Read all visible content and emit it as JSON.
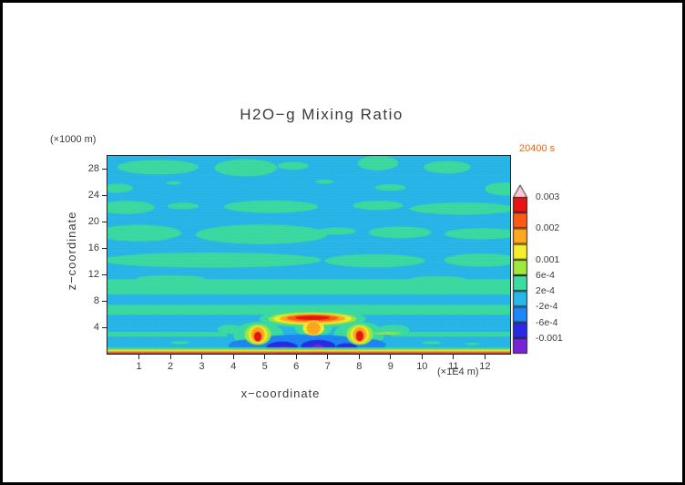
{
  "figure": {
    "title": "H2O−g Mixing Ratio",
    "time_label": "20400 s",
    "x_axis_label": "x−coordinate",
    "x_axis_units": "(×1E4 m)",
    "y_axis_label": "z−coordinate",
    "y_axis_units": "(×1000 m)"
  },
  "chart_data": {
    "type": "filled_contour",
    "title": "H2O−g Mixing Ratio",
    "time": "20400 s",
    "xlabel": "x−coordinate",
    "x_units": "×1E4 m",
    "ylabel": "z−coordinate",
    "y_units": "×1000 m",
    "xlim": [
      0,
      12.8
    ],
    "ylim": [
      0,
      30
    ],
    "x_ticks": [
      1,
      2,
      3,
      4,
      5,
      6,
      7,
      8,
      9,
      10,
      11,
      12
    ],
    "y_ticks": [
      4,
      8,
      12,
      16,
      20,
      24,
      28
    ],
    "levels": [
      -0.001,
      -0.0006,
      -0.0002,
      0.0002,
      0.0006,
      0.001,
      0.0015,
      0.002,
      0.0025,
      0.003
    ],
    "palette": {
      "m3": "#7a22d8",
      "m2": "#2a2ae6",
      "m1": "#1e86f5",
      "z0": "#29b6e8",
      "p1": "#3cdba2",
      "p2": "#9fe83c",
      "p3": "#f5ed2e",
      "p4": "#ffa81e",
      "p5": "#ff5a14",
      "p6": "#e81414",
      "p7": "#ffc9d4"
    },
    "colorbar": {
      "segment_colors_bottom_to_top": [
        "m3",
        "m2",
        "m1",
        "z0",
        "p1",
        "p2",
        "p3",
        "p4",
        "p5",
        "p6"
      ],
      "overflow_triangle_color": "p7",
      "labels": [
        {
          "boundary": 1,
          "text": "-0.001"
        },
        {
          "boundary": 2,
          "text": "-6e-4"
        },
        {
          "boundary": 3,
          "text": "-2e-4"
        },
        {
          "boundary": 4,
          "text": "2e-4"
        },
        {
          "boundary": 5,
          "text": "6e-4"
        },
        {
          "boundary": 6,
          "text": "0.001"
        },
        {
          "boundary": 8,
          "text": "0.002"
        },
        {
          "boundary": 10,
          "text": "0.003"
        }
      ]
    },
    "background_level": "z0",
    "shapes": [
      {
        "t": "r",
        "c": "p1",
        "x": 0,
        "x2": 12.8,
        "y": 9.0,
        "y2": 11.3
      },
      {
        "t": "e",
        "c": "p1",
        "x": 2.0,
        "y": 11.4,
        "rx": 1.1,
        "ry": 0.5
      },
      {
        "t": "e",
        "c": "p1",
        "x": 10.5,
        "y": 11.3,
        "rx": 0.9,
        "ry": 0.45
      },
      {
        "t": "r",
        "c": "p1",
        "x": 0,
        "x2": 12.8,
        "y": 5.9,
        "y2": 7.4
      },
      {
        "t": "e",
        "c": "p1",
        "x": 3.3,
        "y": 14.2,
        "rx": 3.5,
        "ry": 1.15
      },
      {
        "t": "e",
        "c": "p1",
        "x": 8.5,
        "y": 14.1,
        "rx": 1.6,
        "ry": 1.0
      },
      {
        "t": "e",
        "c": "p1",
        "x": 11.9,
        "y": 14.2,
        "rx": 1.2,
        "ry": 1.0
      },
      {
        "t": "e",
        "c": "p1",
        "x": 1.0,
        "y": 18.3,
        "rx": 1.35,
        "ry": 1.25
      },
      {
        "t": "e",
        "c": "p1",
        "x": 4.9,
        "y": 18.1,
        "rx": 2.1,
        "ry": 1.5
      },
      {
        "t": "e",
        "c": "p1",
        "x": 7.3,
        "y": 18.6,
        "rx": 0.6,
        "ry": 0.55
      },
      {
        "t": "e",
        "c": "p1",
        "x": 9.3,
        "y": 18.4,
        "rx": 1.0,
        "ry": 0.9
      },
      {
        "t": "e",
        "c": "p1",
        "x": 11.9,
        "y": 18.2,
        "rx": 1.2,
        "ry": 0.85
      },
      {
        "t": "e",
        "c": "p1",
        "x": 0.6,
        "y": 22.2,
        "rx": 0.9,
        "ry": 1.0
      },
      {
        "t": "e",
        "c": "p1",
        "x": 2.4,
        "y": 22.4,
        "rx": 0.5,
        "ry": 0.5
      },
      {
        "t": "e",
        "c": "p1",
        "x": 5.2,
        "y": 22.3,
        "rx": 1.5,
        "ry": 0.95
      },
      {
        "t": "e",
        "c": "p1",
        "x": 8.6,
        "y": 22.5,
        "rx": 0.8,
        "ry": 0.7
      },
      {
        "t": "e",
        "c": "p1",
        "x": 11.3,
        "y": 22.0,
        "rx": 1.7,
        "ry": 0.9
      },
      {
        "t": "e",
        "c": "p1",
        "x": 0.3,
        "y": 25.1,
        "rx": 0.5,
        "ry": 0.7
      },
      {
        "t": "e",
        "c": "p1",
        "x": 9.0,
        "y": 25.2,
        "rx": 0.5,
        "ry": 0.5
      },
      {
        "t": "e",
        "c": "p1",
        "x": 12.6,
        "y": 25.0,
        "rx": 0.6,
        "ry": 1.0
      },
      {
        "t": "e",
        "c": "p1",
        "x": 1.6,
        "y": 28.3,
        "rx": 1.3,
        "ry": 1.1
      },
      {
        "t": "e",
        "c": "p1",
        "x": 4.4,
        "y": 28.2,
        "rx": 1.0,
        "ry": 1.3
      },
      {
        "t": "e",
        "c": "p1",
        "x": 5.9,
        "y": 28.5,
        "rx": 0.5,
        "ry": 0.6
      },
      {
        "t": "e",
        "c": "p1",
        "x": 8.6,
        "y": 28.9,
        "rx": 0.65,
        "ry": 1.1
      },
      {
        "t": "e",
        "c": "p1",
        "x": 10.8,
        "y": 28.3,
        "rx": 0.75,
        "ry": 0.95
      },
      {
        "t": "e",
        "c": "p1",
        "x": 6.9,
        "y": 26.1,
        "rx": 0.3,
        "ry": 0.3
      },
      {
        "t": "e",
        "c": "p1",
        "x": 2.1,
        "y": 25.9,
        "rx": 0.25,
        "ry": 0.25
      },
      {
        "t": "r",
        "c": "p1",
        "x": 0,
        "x2": 3.8,
        "y": 2.6,
        "y2": 3.3
      },
      {
        "t": "r",
        "c": "p1",
        "x": 9.0,
        "x2": 12.8,
        "y": 2.6,
        "y2": 3.3
      },
      {
        "t": "e",
        "c": "p1",
        "x": 4.8,
        "y": 2.9,
        "rx": 0.8,
        "ry": 1.95
      },
      {
        "t": "e",
        "c": "p1",
        "x": 8.0,
        "y": 2.9,
        "rx": 0.8,
        "ry": 1.95
      },
      {
        "t": "e",
        "c": "p1",
        "x": 6.52,
        "y": 5.3,
        "rx": 1.7,
        "ry": 1.35
      },
      {
        "t": "e",
        "c": "p1",
        "x": 6.55,
        "y": 3.9,
        "rx": 0.6,
        "ry": 1.3
      },
      {
        "t": "e",
        "c": "p1",
        "x": 3.9,
        "y": 3.7,
        "rx": 0.4,
        "ry": 0.7
      },
      {
        "t": "e",
        "c": "p1",
        "x": 9.1,
        "y": 3.6,
        "rx": 0.5,
        "ry": 0.8
      },
      {
        "t": "e",
        "c": "p1",
        "x": 10.3,
        "y": 1.7,
        "rx": 0.3,
        "ry": 0.25
      },
      {
        "t": "e",
        "c": "p1",
        "x": 11.6,
        "y": 1.5,
        "rx": 0.25,
        "ry": 0.2
      },
      {
        "t": "e",
        "c": "p1",
        "x": 2.3,
        "y": 1.7,
        "rx": 0.3,
        "ry": 0.25
      },
      {
        "t": "e",
        "c": "m1",
        "x": 6.3,
        "y": 1.4,
        "rx": 2.1,
        "ry": 1.5
      },
      {
        "t": "e",
        "c": "m1",
        "x": 4.4,
        "y": 1.2,
        "rx": 0.55,
        "ry": 0.95
      },
      {
        "t": "e",
        "c": "m1",
        "x": 8.35,
        "y": 1.3,
        "rx": 0.5,
        "ry": 0.9
      },
      {
        "t": "e",
        "c": "m2",
        "x": 5.55,
        "y": 1.0,
        "rx": 0.5,
        "ry": 0.85
      },
      {
        "t": "e",
        "c": "m2",
        "x": 6.7,
        "y": 1.1,
        "rx": 0.55,
        "ry": 1.0
      },
      {
        "t": "e",
        "c": "m2",
        "x": 7.6,
        "y": 0.9,
        "rx": 0.35,
        "ry": 0.7
      },
      {
        "t": "e",
        "c": "m3",
        "x": 6.7,
        "y": 0.9,
        "rx": 0.2,
        "ry": 0.5
      },
      {
        "t": "e",
        "c": "m3",
        "x": 5.6,
        "y": 0.75,
        "rx": 0.15,
        "ry": 0.35
      },
      {
        "t": "e",
        "c": "p2",
        "x": 4.78,
        "y": 2.9,
        "rx": 0.42,
        "ry": 1.55
      },
      {
        "t": "e",
        "c": "p3",
        "x": 4.78,
        "y": 2.9,
        "rx": 0.3,
        "ry": 1.35
      },
      {
        "t": "e",
        "c": "p4",
        "x": 4.78,
        "y": 2.9,
        "rx": 0.22,
        "ry": 1.15
      },
      {
        "t": "e",
        "c": "p6",
        "x": 4.78,
        "y": 2.6,
        "rx": 0.12,
        "ry": 0.75
      },
      {
        "t": "e",
        "c": "p2",
        "x": 8.02,
        "y": 2.9,
        "rx": 0.42,
        "ry": 1.55
      },
      {
        "t": "e",
        "c": "p3",
        "x": 8.02,
        "y": 2.9,
        "rx": 0.3,
        "ry": 1.35
      },
      {
        "t": "e",
        "c": "p4",
        "x": 8.02,
        "y": 2.9,
        "rx": 0.22,
        "ry": 1.15
      },
      {
        "t": "e",
        "c": "p6",
        "x": 8.02,
        "y": 2.7,
        "rx": 0.12,
        "ry": 0.8
      },
      {
        "t": "e",
        "c": "p2",
        "x": 8.9,
        "y": 3.1,
        "rx": 0.45,
        "ry": 0.18
      },
      {
        "t": "e",
        "c": "p2",
        "x": 6.52,
        "y": 5.3,
        "rx": 1.4,
        "ry": 1.0
      },
      {
        "t": "e",
        "c": "p3",
        "x": 6.52,
        "y": 5.3,
        "rx": 1.25,
        "ry": 0.85
      },
      {
        "t": "e",
        "c": "p4",
        "x": 6.52,
        "y": 5.35,
        "rx": 1.05,
        "ry": 0.68
      },
      {
        "t": "e",
        "c": "p5",
        "x": 6.52,
        "y": 5.4,
        "rx": 0.82,
        "ry": 0.5
      },
      {
        "t": "e",
        "c": "p6",
        "x": 6.52,
        "y": 5.45,
        "rx": 0.55,
        "ry": 0.33
      },
      {
        "t": "e",
        "c": "p3",
        "x": 6.55,
        "y": 3.9,
        "rx": 0.34,
        "ry": 1.15
      },
      {
        "t": "e",
        "c": "p4",
        "x": 6.55,
        "y": 3.9,
        "rx": 0.22,
        "ry": 1.0
      },
      {
        "t": "r",
        "c": "p1",
        "x": 0,
        "x2": 12.8,
        "y": 0.72,
        "y2": 0.95
      },
      {
        "t": "r",
        "c": "p2",
        "x": 0,
        "x2": 12.8,
        "y": 0.56,
        "y2": 0.72
      },
      {
        "t": "r",
        "c": "p3",
        "x": 0,
        "x2": 12.8,
        "y": 0.42,
        "y2": 0.56
      },
      {
        "t": "r",
        "c": "p4",
        "x": 0,
        "x2": 12.8,
        "y": 0.22,
        "y2": 0.42
      },
      {
        "t": "r",
        "c": "p5",
        "x": 0,
        "x2": 12.8,
        "y": 0.1,
        "y2": 0.22
      },
      {
        "t": "r",
        "c": "p6",
        "x": 0,
        "x2": 12.8,
        "y": 0.0,
        "y2": 0.1
      }
    ]
  }
}
